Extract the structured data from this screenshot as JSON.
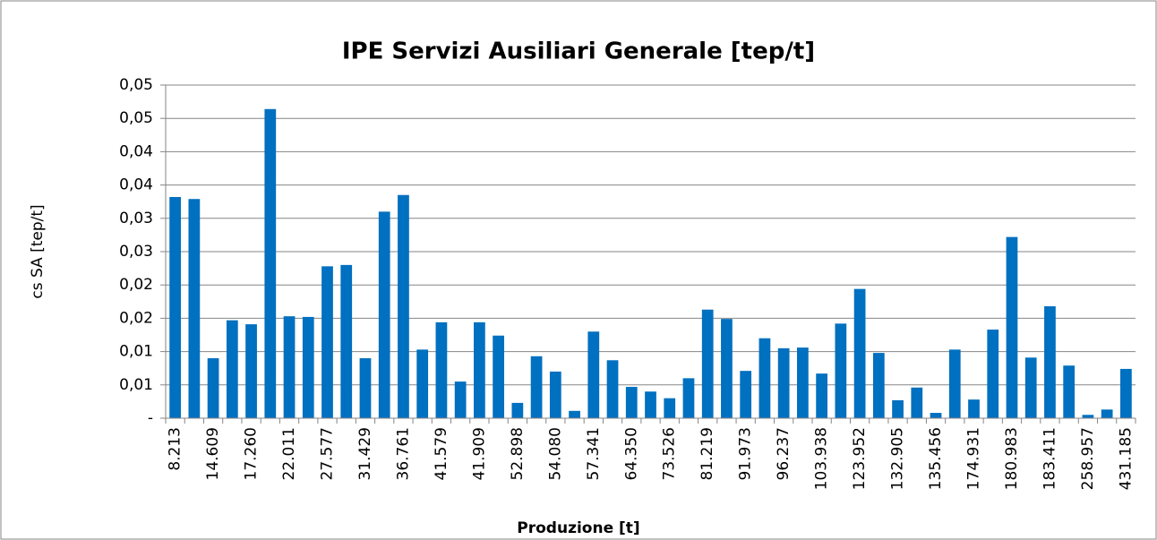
{
  "chart_data": {
    "type": "bar",
    "title": "IPE Servizi Ausiliari Generale [tep/t]",
    "xlabel": "Produzione [t]",
    "ylabel": "cs SA [tep/t]",
    "color": "#0070c0",
    "grid": true,
    "categories": [
      "8.213",
      null,
      "14.609",
      null,
      "17.260",
      null,
      "22.011",
      null,
      "27.577",
      null,
      "31.429",
      null,
      "36.761",
      null,
      "41.579",
      null,
      "41.909",
      null,
      "52.898",
      null,
      "54.080",
      null,
      "57.341",
      null,
      "64.350",
      null,
      "73.526",
      null,
      "81.219",
      null,
      "91.973",
      null,
      "96.237",
      null,
      "103.938",
      null,
      "123.952",
      null,
      "132.905",
      null,
      "135.456",
      null,
      "174.931",
      null,
      "180.983",
      null,
      "183.411",
      null,
      "258.957",
      null,
      "431.185"
    ],
    "values": [
      0.0332,
      0.0329,
      0.009,
      0.0147,
      0.0141,
      0.0464,
      0.0153,
      0.0152,
      0.0228,
      0.023,
      0.009,
      0.031,
      0.0335,
      0.0103,
      0.0144,
      0.0055,
      0.0144,
      0.0124,
      0.0023,
      0.0093,
      0.007,
      0.0011,
      0.013,
      0.0087,
      0.0047,
      0.004,
      0.003,
      0.006,
      0.0163,
      0.0149,
      0.0071,
      0.012,
      0.0105,
      0.0106,
      0.0067,
      0.0142,
      0.0194,
      0.0098,
      0.0027,
      0.0046,
      0.0008,
      0.0103,
      0.0028,
      0.0133,
      0.0272,
      0.0091,
      0.0168,
      0.0079,
      0.0005,
      0.0013,
      0.0074
    ],
    "ylim": [
      0,
      0.05
    ],
    "yticks": [
      {
        "value": 0,
        "label": "-"
      },
      {
        "value": 0.005,
        "label": "0,01"
      },
      {
        "value": 0.01,
        "label": "0,01"
      },
      {
        "value": 0.015,
        "label": "0,02"
      },
      {
        "value": 0.02,
        "label": "0,02"
      },
      {
        "value": 0.025,
        "label": "0,03"
      },
      {
        "value": 0.03,
        "label": "0,03"
      },
      {
        "value": 0.035,
        "label": "0,04"
      },
      {
        "value": 0.04,
        "label": "0,04"
      },
      {
        "value": 0.045,
        "label": "0,05"
      },
      {
        "value": 0.05,
        "label": "0,05"
      }
    ]
  }
}
